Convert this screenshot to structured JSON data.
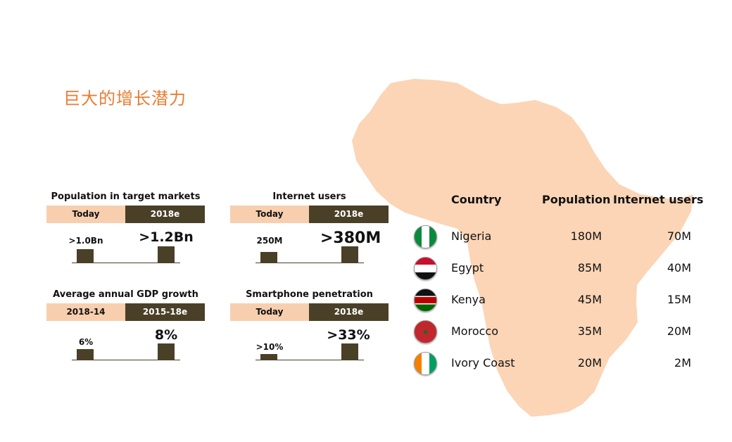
{
  "title": "巨大的增长潜力",
  "colors": {
    "accent": "#e97d33",
    "dark": "#4a4028",
    "light": "#f8cfae",
    "map": "#fbd5b6"
  },
  "panels": [
    {
      "title": "Population in target markets",
      "col_left": "Today",
      "col_right": "2018e",
      "left_value": ">1.0Bn",
      "right_value": ">1.2Bn",
      "left_level": 1.0,
      "right_level": 1.2
    },
    {
      "title": "Internet users",
      "col_left": "Today",
      "col_right": "2018e",
      "left_value": "250M",
      "right_value": ">380M",
      "left_level": 250,
      "right_level": 380
    },
    {
      "title": "Average annual GDP growth",
      "col_left": "2018-14",
      "col_right": "2015-18e",
      "left_value": "6%",
      "right_value": "8%",
      "left_level": 6,
      "right_level": 8
    },
    {
      "title": "Smartphone penetration",
      "col_left": "Today",
      "col_right": "2018e",
      "left_value": ">10%",
      "right_value": ">33%",
      "left_level": 10,
      "right_level": 33
    }
  ],
  "table": {
    "headers": {
      "country": "Country",
      "population": "Population",
      "internet": "Internet users"
    },
    "rows": [
      {
        "country": "Nigeria",
        "population": "180M",
        "internet": "70M",
        "flag_icon": "nigeria-flag-icon"
      },
      {
        "country": "Egypt",
        "population": "85M",
        "internet": "40M",
        "flag_icon": "egypt-flag-icon"
      },
      {
        "country": "Kenya",
        "population": "45M",
        "internet": "15M",
        "flag_icon": "kenya-flag-icon"
      },
      {
        "country": "Morocco",
        "population": "35M",
        "internet": "20M",
        "flag_icon": "morocco-flag-icon"
      },
      {
        "country": "Ivory Coast",
        "population": "20M",
        "internet": "2M",
        "flag_icon": "ivory-coast-flag-icon"
      }
    ]
  }
}
